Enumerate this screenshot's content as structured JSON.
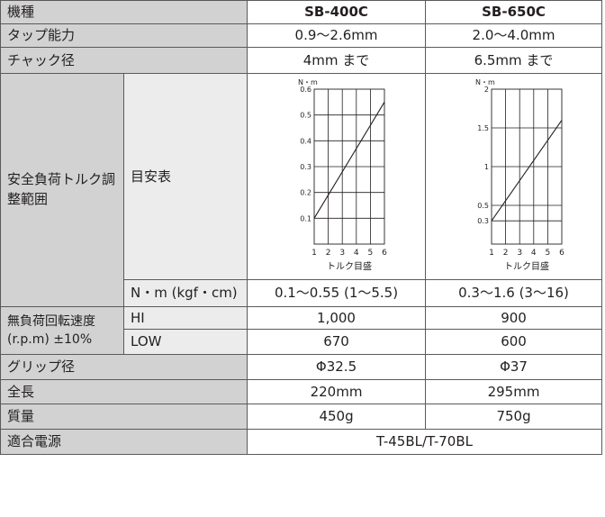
{
  "header": {
    "label": "機種",
    "model_a": "SB-400C",
    "model_b": "SB-650C"
  },
  "rows": {
    "tap": {
      "label": "タップ能力",
      "a": "0.9〜2.6mm",
      "b": "2.0〜4.0mm"
    },
    "chuck": {
      "label": "チャック径",
      "a": "4mm まで",
      "b": "6.5mm まで"
    },
    "torque": {
      "label": "安全負荷トルク調整範囲",
      "guide_label": "目安表",
      "units_label": "N・m (kgf・cm)",
      "a": "0.1〜0.55 (1〜5.5)",
      "b": "0.3〜1.6 (3〜16)"
    },
    "speed": {
      "label": "無負荷回転速度 (r.p.m) ±10%",
      "hi_label": "HI",
      "hi_a": "1,000",
      "hi_b": "900",
      "low_label": "LOW",
      "low_a": "670",
      "low_b": "600"
    },
    "grip": {
      "label": "グリップ径",
      "a": "Φ32.5",
      "b": "Φ37"
    },
    "length": {
      "label": "全長",
      "a": "220mm",
      "b": "295mm"
    },
    "weight": {
      "label": "質量",
      "a": "450g",
      "b": "750g"
    },
    "power": {
      "label": "適合電源",
      "value": "T-45BL/T-70BL"
    }
  },
  "chart_data": [
    {
      "type": "line",
      "ylabel": "N・m",
      "xlabel": "トルク目盛",
      "x_ticks": [
        "1",
        "2",
        "3",
        "4",
        "5",
        "6"
      ],
      "y_ticks": [
        "0.1",
        "0.2",
        "0.3",
        "0.4",
        "0.5",
        "0.6"
      ],
      "xlim": [
        1,
        6
      ],
      "ylim": [
        0,
        0.6
      ],
      "grid": true,
      "x": [
        1,
        6
      ],
      "y": [
        0.1,
        0.55
      ]
    },
    {
      "type": "line",
      "ylabel": "N・m",
      "xlabel": "トルク目盛",
      "x_ticks": [
        "1",
        "2",
        "3",
        "4",
        "5",
        "6"
      ],
      "y_ticks": [
        "0.3",
        "0.5",
        "1",
        "1.5",
        "2"
      ],
      "xlim": [
        1,
        6
      ],
      "ylim": [
        0,
        2
      ],
      "grid": true,
      "x": [
        1,
        6
      ],
      "y": [
        0.3,
        1.6
      ]
    }
  ]
}
